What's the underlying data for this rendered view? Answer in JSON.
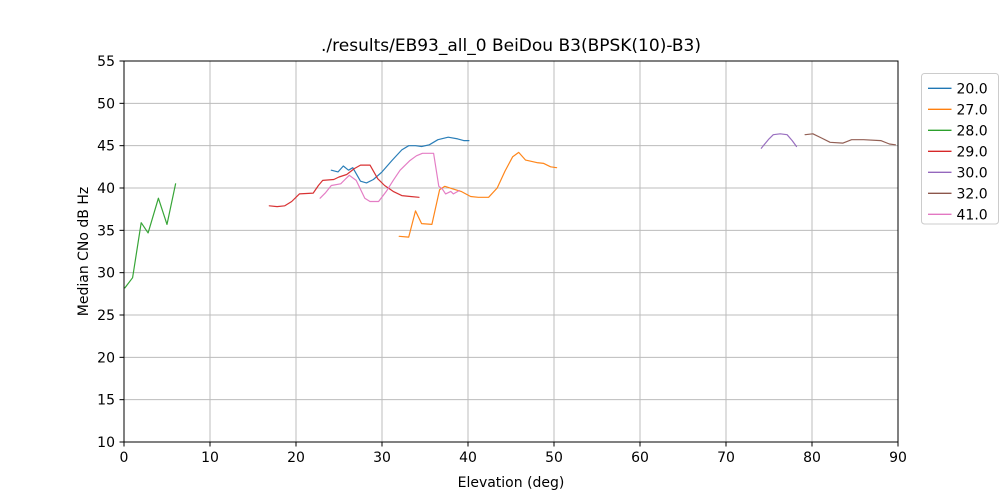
{
  "chart_data": {
    "type": "line",
    "title": "./results/EB93_all_0 BeiDou B3(BPSK(10)-B3)",
    "xlabel": "Elevation (deg)",
    "ylabel": "Median CNo dB Hz",
    "xlim": [
      0,
      90
    ],
    "ylim": [
      10,
      55
    ],
    "xticks": [
      0,
      10,
      20,
      30,
      40,
      50,
      60,
      70,
      80,
      90
    ],
    "yticks": [
      10,
      15,
      20,
      25,
      30,
      35,
      40,
      45,
      50,
      55
    ],
    "grid": true,
    "grid_color": "#bcbcbc",
    "legend_position": "outside-right",
    "series": [
      {
        "name": "20.0",
        "color": "#1f77b4",
        "points": [
          [
            24.1,
            42.1
          ],
          [
            24.5,
            42.0
          ],
          [
            24.9,
            41.9
          ],
          [
            25.5,
            42.6
          ],
          [
            26.1,
            42.1
          ],
          [
            26.6,
            42.4
          ],
          [
            27.5,
            40.8
          ],
          [
            28.2,
            40.6
          ],
          [
            29.0,
            41.0
          ],
          [
            30.0,
            41.9
          ],
          [
            31.2,
            43.3
          ],
          [
            32.3,
            44.5
          ],
          [
            33.1,
            45.0
          ],
          [
            33.9,
            45.0
          ],
          [
            34.6,
            44.9
          ],
          [
            35.5,
            45.1
          ],
          [
            36.5,
            45.7
          ],
          [
            37.7,
            46.0
          ],
          [
            38.8,
            45.8
          ],
          [
            39.5,
            45.6
          ],
          [
            40.1,
            45.6
          ]
        ]
      },
      {
        "name": "27.0",
        "color": "#ff7f0e",
        "points": [
          [
            32.0,
            34.3
          ],
          [
            33.1,
            34.2
          ],
          [
            33.9,
            37.3
          ],
          [
            34.6,
            35.8
          ],
          [
            35.8,
            35.7
          ],
          [
            36.7,
            39.8
          ],
          [
            37.3,
            40.2
          ],
          [
            38.2,
            39.9
          ],
          [
            39.2,
            39.6
          ],
          [
            40.3,
            39.0
          ],
          [
            41.2,
            38.9
          ],
          [
            42.4,
            38.9
          ],
          [
            43.4,
            40.0
          ],
          [
            44.3,
            42.0
          ],
          [
            45.2,
            43.7
          ],
          [
            45.9,
            44.2
          ],
          [
            46.7,
            43.3
          ],
          [
            48.0,
            43.0
          ],
          [
            48.8,
            42.9
          ],
          [
            49.6,
            42.5
          ],
          [
            50.3,
            42.4
          ]
        ]
      },
      {
        "name": "28.0",
        "color": "#2ca02c",
        "points": [
          [
            0.1,
            28.2
          ],
          [
            1.0,
            29.4
          ],
          [
            2.0,
            35.9
          ],
          [
            2.8,
            34.7
          ],
          [
            4.0,
            38.8
          ],
          [
            5.0,
            35.7
          ],
          [
            6.0,
            40.5
          ]
        ]
      },
      {
        "name": "29.0",
        "color": "#d62728",
        "points": [
          [
            16.9,
            37.9
          ],
          [
            17.8,
            37.8
          ],
          [
            18.7,
            37.9
          ],
          [
            19.5,
            38.4
          ],
          [
            20.4,
            39.3
          ],
          [
            22.0,
            39.4
          ],
          [
            22.6,
            40.3
          ],
          [
            23.1,
            40.9
          ],
          [
            24.4,
            41.0
          ],
          [
            25.0,
            41.3
          ],
          [
            25.9,
            41.6
          ],
          [
            26.8,
            42.3
          ],
          [
            27.5,
            42.7
          ],
          [
            28.6,
            42.7
          ],
          [
            29.5,
            41.1
          ],
          [
            30.3,
            40.3
          ],
          [
            31.3,
            39.6
          ],
          [
            32.3,
            39.1
          ],
          [
            33.3,
            39.0
          ],
          [
            34.3,
            38.9
          ]
        ]
      },
      {
        "name": "30.0",
        "color": "#9467bd",
        "points": [
          [
            74.1,
            44.7
          ],
          [
            75.0,
            45.8
          ],
          [
            75.5,
            46.3
          ],
          [
            76.3,
            46.4
          ],
          [
            77.1,
            46.3
          ],
          [
            77.7,
            45.6
          ],
          [
            78.2,
            44.9
          ]
        ]
      },
      {
        "name": "32.0",
        "color": "#8c564b",
        "points": [
          [
            79.2,
            46.3
          ],
          [
            80.1,
            46.4
          ],
          [
            81.1,
            45.9
          ],
          [
            82.1,
            45.4
          ],
          [
            83.6,
            45.3
          ],
          [
            84.6,
            45.7
          ],
          [
            86.0,
            45.7
          ],
          [
            88.0,
            45.6
          ],
          [
            89.0,
            45.2
          ],
          [
            89.7,
            45.1
          ]
        ]
      },
      {
        "name": "41.0",
        "color": "#e377c2",
        "points": [
          [
            22.8,
            38.8
          ],
          [
            23.4,
            39.4
          ],
          [
            24.1,
            40.3
          ],
          [
            25.2,
            40.5
          ],
          [
            25.7,
            41.0
          ],
          [
            26.2,
            41.5
          ],
          [
            27.0,
            40.9
          ],
          [
            28.0,
            38.8
          ],
          [
            28.6,
            38.4
          ],
          [
            29.6,
            38.4
          ],
          [
            30.5,
            39.6
          ],
          [
            31.3,
            40.9
          ],
          [
            32.1,
            42.1
          ],
          [
            33.2,
            43.2
          ],
          [
            34.0,
            43.8
          ],
          [
            34.7,
            44.1
          ],
          [
            36.0,
            44.1
          ],
          [
            36.6,
            40.2
          ],
          [
            37.0,
            39.9
          ],
          [
            37.4,
            39.3
          ],
          [
            38.0,
            39.6
          ],
          [
            38.3,
            39.3
          ],
          [
            39.0,
            39.7
          ]
        ]
      }
    ]
  }
}
